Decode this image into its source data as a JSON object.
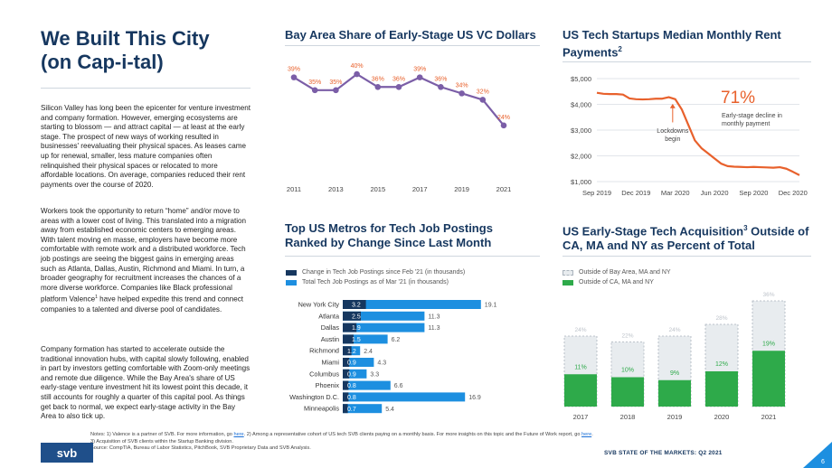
{
  "page_title": {
    "line1": "We Built This City",
    "line2": "(on Cap-i-tal)"
  },
  "paragraphs": {
    "p1": "Silicon Valley has long been the epicenter for venture investment and company formation. However, emerging ecosystems are starting to blossom — and attract capital — at least at the early stage. The prospect of new ways of working resulted in businesses' reevaluating their physical spaces. As leases came up for renewal, smaller, less mature companies often relinquished their physical spaces or relocated to more affordable locations. On average, companies reduced their rent payments over the course of 2020.",
    "p2a": "Workers took the opportunity to return “home” and/or move to areas with a lower cost of living. This translated into a migration away from established economic centers to emerging areas. With talent moving en masse, employers have become more comfortable with remote work and a distributed workforce. Tech job postings are seeing the biggest gains in emerging areas such as Atlanta, Dallas, Austin, Richmond and Miami. In turn, a broader geography for recruitment increases the chances of a more diverse workforce. Companies like Black professional platform Valence",
    "p2_sup": "1",
    "p2b": " have helped expedite this trend and connect companies to a talented and diverse pool of candidates.",
    "p3": "Company formation has started to accelerate outside the traditional innovation hubs, with capital slowly following, enabled in part by investors getting comfortable with Zoom-only meetings and remote due diligence. While the Bay Area's share of US early-stage venture investment hit its lowest point this decade, it still accounts for roughly a quarter of this capital pool. As things get back to normal, we expect early-stage activity in the Bay Area to also tick up."
  },
  "chart_data": [
    {
      "type": "line",
      "title": "Bay Area Share of Early-Stage US VC Dollars",
      "x": [
        2011,
        2012,
        2013,
        2014,
        2015,
        2016,
        2017,
        2018,
        2019,
        2020,
        2021
      ],
      "x_ticks": [
        "2011",
        "2013",
        "2015",
        "2017",
        "2019",
        "2021"
      ],
      "values": [
        39,
        35,
        35,
        40,
        36,
        36,
        39,
        36,
        34,
        32,
        24
      ],
      "labels": [
        "39%",
        "35%",
        "35%",
        "40%",
        "36%",
        "36%",
        "39%",
        "36%",
        "34%",
        "32%",
        "24%"
      ],
      "ylim": [
        20,
        42
      ],
      "color": "#7b5ea7"
    },
    {
      "type": "line",
      "title": "US Tech Startups Median Monthly Rent Payments",
      "title_sup": "2",
      "x_ticks": [
        "Sep 2019",
        "Dec 2019",
        "Mar 2020",
        "Jun 2020",
        "Sep 2020",
        "Dec 2020"
      ],
      "y_ticks": [
        "$5,000",
        "$4,000",
        "$3,000",
        "$2,000",
        "$1,000"
      ],
      "ylim": [
        1000,
        5000
      ],
      "x": [
        0,
        0.5,
        1,
        1.5,
        2,
        2.5,
        3,
        3.5,
        4,
        4.5,
        5,
        5.5,
        6,
        6.5,
        7,
        7.5,
        8,
        8.5,
        9,
        9.5,
        10,
        10.5,
        11,
        11.5,
        12,
        12.5,
        13,
        13.5,
        14,
        14.5,
        15,
        15.5
      ],
      "values": [
        4450,
        4410,
        4400,
        4400,
        4380,
        4230,
        4200,
        4190,
        4200,
        4220,
        4220,
        4280,
        4200,
        3800,
        3200,
        2600,
        2300,
        2100,
        1900,
        1700,
        1600,
        1580,
        1570,
        1560,
        1570,
        1560,
        1550,
        1540,
        1560,
        1500,
        1380,
        1250
      ],
      "color": "#e8612c",
      "annotations": {
        "lockdown_line1": "Lockdowns",
        "lockdown_line2": "begin",
        "big_pct": "71%",
        "decline_line1": "Early-stage decline in",
        "decline_line2": "monthly payment"
      }
    },
    {
      "type": "bar",
      "title_line1": "Top US Metros for Tech Job Postings",
      "title_line2": "Ranked by Change Since Last Month",
      "series": [
        {
          "name": "Change in Tech Job Postings since Feb '21 (in thousands)",
          "color": "#16375f",
          "values": [
            3.2,
            2.5,
            1.9,
            1.5,
            1.2,
            0.9,
            0.9,
            0.8,
            0.8,
            0.7
          ],
          "labels": [
            "3.2",
            "2.5",
            "1.9",
            "1.5",
            "1.2",
            "0.9",
            "0.9",
            "0.8",
            "0.8",
            "0.7"
          ]
        },
        {
          "name": "Total Tech Job Postings as of Mar '21 (in thousands)",
          "color": "#1d8fe0",
          "values": [
            19.1,
            11.3,
            11.3,
            6.2,
            2.4,
            4.3,
            3.3,
            6.6,
            16.9,
            5.4
          ],
          "labels": [
            "19.1",
            "11.3",
            "11.3",
            "6.2",
            "2.4",
            "4.3",
            "3.3",
            "6.6",
            "16.9",
            "5.4"
          ]
        }
      ],
      "categories": [
        "New York City",
        "Atlanta",
        "Dallas",
        "Austin",
        "Richmond",
        "Miami",
        "Columbus",
        "Phoenix",
        "Washington D.C.",
        "Minneapolis"
      ],
      "xlim": [
        0,
        20
      ]
    },
    {
      "type": "bar",
      "title_line1": "US Early-Stage Tech Acquisition",
      "title_sup": "3",
      "title_line1b": " Outside of",
      "title_line2": "CA, MA and NY as Percent of Total",
      "categories": [
        "2017",
        "2018",
        "2019",
        "2020",
        "2021"
      ],
      "series": [
        {
          "name": "Outside of Bay Area, MA and NY",
          "color": "#e8ecef",
          "values": [
            24,
            22,
            24,
            28,
            36
          ],
          "labels": [
            "24%",
            "22%",
            "24%",
            "28%",
            "36%"
          ]
        },
        {
          "name": "Outside of CA, MA and NY",
          "color": "#2eaa4a",
          "values": [
            11,
            10,
            9,
            12,
            19
          ],
          "labels": [
            "11%",
            "10%",
            "9%",
            "12%",
            "19%"
          ]
        }
      ],
      "ylim": [
        0,
        40
      ]
    }
  ],
  "notes": {
    "line1a": "Notes: 1) Valence is a partner of SVB. For more information, go ",
    "link1": "here",
    "line1b": ". 2) Among a representative cohort of US tech SVB clients paying on a monthly basis. For more insights on this topic and the Future of Work report, go ",
    "link2": "here",
    "line1c": ".",
    "line2": "3) Acquisition of SVB clients within the Startup Banking division.",
    "line3": "Source: CompTIA, Bureau of Labor Statistics, PitchBook, SVB Proprietary Data and SVB Analysis."
  },
  "footer": {
    "logo_text": "svb",
    "brand": "SVB STATE OF THE MARKETS: Q2 2021",
    "page_number": "6"
  },
  "colors": {
    "navy": "#16375f",
    "accent_blue": "#1d8fe0",
    "purple": "#7b5ea7",
    "orange": "#e8612c",
    "green": "#2eaa4a"
  }
}
